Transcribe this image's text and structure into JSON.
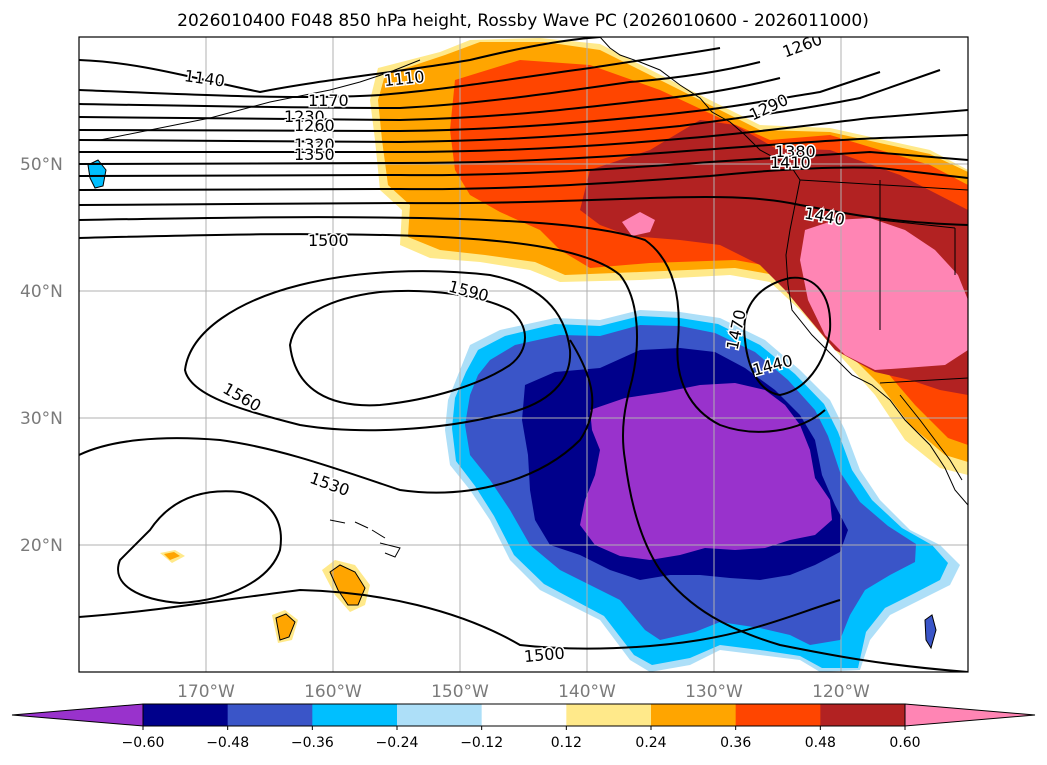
{
  "chart_data": {
    "type": "contour-map",
    "title": "2026010400 F048 850 hPa height, Rossby Wave PC (2026010600 - 2026011000)",
    "variable_filled": "Rossby Wave PC",
    "variable_contours": "850 hPa height",
    "lon_ticks": [
      "170°W",
      "160°W",
      "150°W",
      "140°W",
      "130°W",
      "120°W"
    ],
    "lon_tick_values": [
      -170,
      -160,
      -150,
      -140,
      -130,
      -120
    ],
    "lat_ticks": [
      "50°N",
      "40°N",
      "30°N",
      "20°N"
    ],
    "lat_tick_values": [
      50,
      40,
      30,
      20
    ],
    "lon_range": [
      -180,
      -110
    ],
    "lat_range": [
      10,
      60
    ],
    "colorbar": {
      "ticks": [
        "−0.60",
        "−0.48",
        "−0.36",
        "−0.24",
        "−0.12",
        "0.12",
        "0.24",
        "0.36",
        "0.48",
        "0.60"
      ],
      "tick_values": [
        -0.6,
        -0.48,
        -0.36,
        -0.24,
        -0.12,
        0.12,
        0.24,
        0.36,
        0.48,
        0.6
      ],
      "colors": [
        "#9932CC",
        "#00008B",
        "#3A55C8",
        "#00BFFF",
        "#ADDFF8",
        "#FFFFFF",
        "#FFE98A",
        "#FFA500",
        "#FF4500",
        "#B22222",
        "#FF85B4"
      ],
      "extend": "both"
    },
    "contour_labels": [
      {
        "text": "1140",
        "lon": -180,
        "lat": 56.6
      },
      {
        "text": "1110",
        "lon": -162,
        "lat": 56.6
      },
      {
        "text": "1170",
        "lon": -168,
        "lat": 55.1
      },
      {
        "text": "1230",
        "lon": -170.5,
        "lat": 53.8
      },
      {
        "text": "1260",
        "lon": -170,
        "lat": 52.9
      },
      {
        "text": "1320",
        "lon": -170,
        "lat": 51.4
      },
      {
        "text": "1350",
        "lon": -170,
        "lat": 50.5
      },
      {
        "text": "1290",
        "lon": -128,
        "lat": 55.1
      },
      {
        "text": "1260",
        "lon": -125,
        "lat": 59.5
      },
      {
        "text": "1380",
        "lon": -127,
        "lat": 51.5
      },
      {
        "text": "1410",
        "lon": -127,
        "lat": 50.7
      },
      {
        "text": "1440",
        "lon": -124,
        "lat": 46.2
      },
      {
        "text": "1500",
        "lon": -158,
        "lat": 43.9
      },
      {
        "text": "1590",
        "lon": -152,
        "lat": 39.4
      },
      {
        "text": "1560",
        "lon": -168.5,
        "lat": 30.6
      },
      {
        "text": "1530",
        "lon": -156.5,
        "lat": 24.6
      },
      {
        "text": "1470",
        "lon": -135,
        "lat": 35.9
      },
      {
        "text": "1440",
        "lon": -132,
        "lat": 34.3
      },
      {
        "text": "1500",
        "lon": -142,
        "lat": 11.7
      }
    ],
    "features": {
      "positive_anomaly": "North Pacific / US West Coast, peak over Great Basin",
      "negative_anomaly": "Subtropical east Pacific centered near 27N 136W"
    }
  }
}
